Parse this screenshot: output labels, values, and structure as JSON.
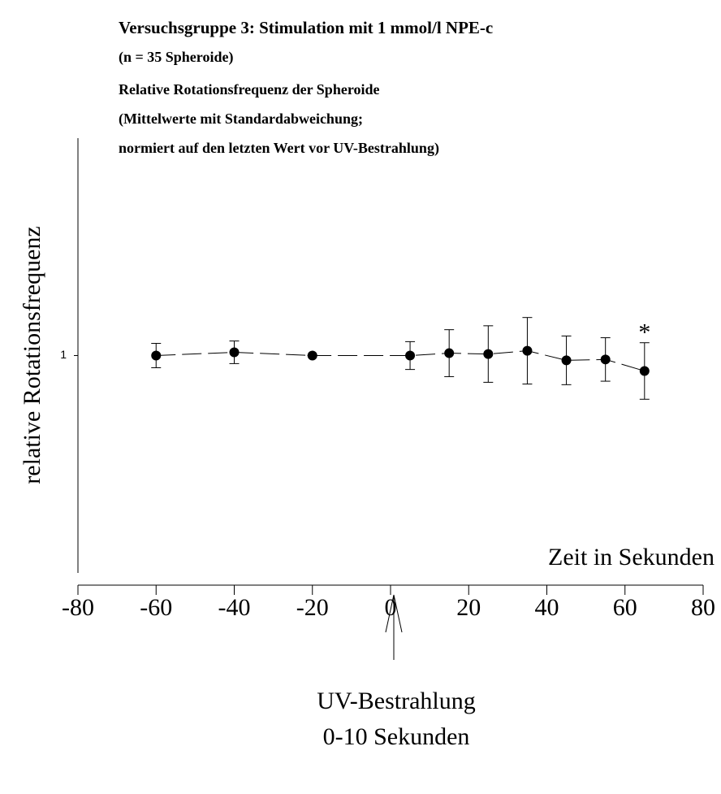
{
  "chart_data": {
    "type": "line",
    "title": "Versuchsgruppe 3: Stimulation mit 1 mmol/l NPE-c",
    "subtitle": [
      "(n = 35 Spheroide)",
      "Relative Rotationsfrequenz der Spheroide",
      "(Mittelwerte mit Standardabweichung;",
      "normiert auf den letzten Wert vor UV-Bestrahlung)"
    ],
    "x_label": "Zeit in Sekunden",
    "y_label": "relative Rotationsfrequenz",
    "x": [
      -60,
      -40,
      -20,
      5,
      15,
      25,
      35,
      45,
      55,
      65
    ],
    "series": [
      {
        "name": "relative Rotationsfrequenz",
        "color": "#000000",
        "values": [
          1.0,
          1.015,
          1.0,
          1.0,
          1.011,
          1.007,
          1.022,
          0.978,
          0.982,
          0.929
        ],
        "errors": [
          0.056,
          0.052,
          0,
          0.064,
          0.108,
          0.13,
          0.153,
          0.112,
          0.1,
          0.13
        ]
      }
    ],
    "xlim": [
      -80,
      80
    ],
    "xticks": [
      -80,
      -60,
      -40,
      -20,
      0,
      20,
      40,
      60,
      80
    ],
    "ylim": [
      0,
      2
    ],
    "yticks": [
      1
    ],
    "annotations": [
      {
        "text": "*",
        "x": 65
      },
      {
        "text": [
          "UV-Bestrahlung",
          "0-10 Sekunden"
        ],
        "x": 0
      }
    ]
  }
}
